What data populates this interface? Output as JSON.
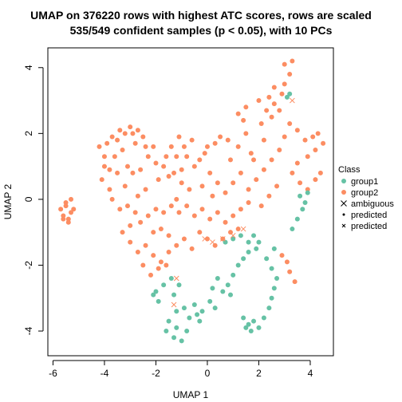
{
  "chart_data": {
    "type": "scatter",
    "title_line1": "UMAP on 376220 rows with highest ATC scores, rows are scaled",
    "title_line2": "535/549 confident samples (p < 0.05), with 10 PCs",
    "xlabel": "UMAP 1",
    "ylabel": "UMAP 2",
    "xlim": [
      -6.2,
      4.9
    ],
    "ylim": [
      -4.75,
      4.6
    ],
    "xticks": [
      -6,
      -4,
      -2,
      0,
      2,
      4
    ],
    "yticks": [
      -4,
      -2,
      0,
      2,
      4
    ],
    "legend": {
      "title": "Class",
      "placement": "right",
      "entries": [
        {
          "label": "group1",
          "color": "#66C2A5",
          "marker": "dot"
        },
        {
          "label": "group2",
          "color": "#FC8D62",
          "marker": "dot"
        },
        {
          "label": "ambiguous",
          "color": "#000000",
          "marker": "cross"
        },
        {
          "label": "predicted",
          "color": "#000000",
          "marker": "small-dot"
        },
        {
          "label": "predicted",
          "color": "#000000",
          "marker": "small-cross"
        }
      ]
    },
    "series": [
      {
        "name": "group2",
        "color": "#FC8D62",
        "points": [
          [
            -5.5,
            -0.2
          ],
          [
            -5.7,
            -0.3
          ],
          [
            -5.6,
            -0.5
          ],
          [
            -5.4,
            -0.6
          ],
          [
            -5.3,
            -0.4
          ],
          [
            -5.5,
            -0.1
          ],
          [
            -5.2,
            -0.3
          ],
          [
            -5.3,
            0.0
          ],
          [
            -5.4,
            -0.7
          ],
          [
            -5.6,
            -0.6
          ],
          [
            -4.2,
            1.6
          ],
          [
            -3.9,
            1.7
          ],
          [
            -3.5,
            1.8
          ],
          [
            -3.2,
            2.0
          ],
          [
            -3.0,
            2.2
          ],
          [
            -2.7,
            2.1
          ],
          [
            -2.5,
            1.9
          ],
          [
            -2.8,
            1.7
          ],
          [
            -3.3,
            1.5
          ],
          [
            -3.6,
            1.3
          ],
          [
            -4.0,
            1.0
          ],
          [
            -3.8,
            0.9
          ],
          [
            -3.5,
            0.8
          ],
          [
            -3.1,
            1.0
          ],
          [
            -2.9,
            0.8
          ],
          [
            -2.6,
            0.9
          ],
          [
            -2.3,
            1.3
          ],
          [
            -2.1,
            1.6
          ],
          [
            -2.0,
            1.1
          ],
          [
            -1.7,
            1.0
          ],
          [
            -1.9,
            0.6
          ],
          [
            -1.5,
            0.7
          ],
          [
            -1.3,
            0.8
          ],
          [
            -1.0,
            0.9
          ],
          [
            -1.2,
            1.3
          ],
          [
            -1.4,
            1.6
          ],
          [
            -0.9,
            1.6
          ],
          [
            -0.8,
            1.3
          ],
          [
            -0.5,
            1.0
          ],
          [
            -0.3,
            1.2
          ],
          [
            -0.1,
            1.4
          ],
          [
            0.3,
            1.7
          ],
          [
            0.5,
            1.9
          ],
          [
            0.8,
            1.8
          ],
          [
            1.2,
            1.6
          ],
          [
            1.5,
            2.0
          ],
          [
            1.4,
            2.4
          ],
          [
            1.2,
            2.6
          ],
          [
            1.5,
            2.8
          ],
          [
            2.0,
            3.0
          ],
          [
            2.4,
            3.1
          ],
          [
            2.6,
            2.9
          ],
          [
            3.0,
            3.5
          ],
          [
            3.2,
            3.8
          ],
          [
            3.0,
            4.1
          ],
          [
            3.3,
            4.2
          ],
          [
            2.9,
            3.2
          ],
          [
            2.5,
            2.5
          ],
          [
            2.3,
            2.7
          ],
          [
            2.1,
            2.3
          ],
          [
            -3.7,
            0.0
          ],
          [
            -3.4,
            -0.3
          ],
          [
            -3.1,
            -0.2
          ],
          [
            -2.8,
            -0.4
          ],
          [
            -3.0,
            -0.8
          ],
          [
            -2.6,
            -0.7
          ],
          [
            -2.3,
            -0.5
          ],
          [
            -2.0,
            -0.3
          ],
          [
            -1.7,
            -0.4
          ],
          [
            -1.4,
            -0.2
          ],
          [
            -1.1,
            -0.4
          ],
          [
            -0.8,
            -0.2
          ],
          [
            -0.5,
            -0.5
          ],
          [
            -0.2,
            -0.3
          ],
          [
            0.1,
            -0.6
          ],
          [
            0.4,
            -0.4
          ],
          [
            0.7,
            -0.7
          ],
          [
            1.0,
            -0.5
          ],
          [
            1.3,
            -0.3
          ],
          [
            1.6,
            -0.1
          ],
          [
            -3.3,
            -1.0
          ],
          [
            -3.0,
            -1.3
          ],
          [
            -2.7,
            -1.6
          ],
          [
            -2.4,
            -1.4
          ],
          [
            -2.1,
            -1.7
          ],
          [
            -1.8,
            -1.9
          ],
          [
            -1.5,
            -1.6
          ],
          [
            -1.2,
            -1.4
          ],
          [
            -0.9,
            -1.2
          ],
          [
            -0.6,
            -1.5
          ],
          [
            -0.3,
            -1.0
          ],
          [
            0.0,
            -1.2
          ],
          [
            0.3,
            -1.4
          ],
          [
            0.6,
            -1.2
          ],
          [
            0.9,
            -1.0
          ],
          [
            1.2,
            -0.9
          ],
          [
            -2.5,
            -2.0
          ],
          [
            -2.2,
            -2.3
          ],
          [
            -1.9,
            -2.1
          ],
          [
            -1.6,
            -2.0
          ],
          [
            1.6,
            0.3
          ],
          [
            1.9,
            0.6
          ],
          [
            2.2,
            0.9
          ],
          [
            1.8,
            1.2
          ],
          [
            1.3,
            0.8
          ],
          [
            1.0,
            0.5
          ],
          [
            0.7,
            0.2
          ],
          [
            0.4,
            0.5
          ],
          [
            0.1,
            0.8
          ],
          [
            -0.2,
            0.4
          ],
          [
            3.8,
            1.8
          ],
          [
            4.1,
            1.9
          ],
          [
            4.3,
            2.0
          ],
          [
            4.5,
            1.7
          ],
          [
            4.2,
            1.5
          ],
          [
            3.9,
            1.3
          ],
          [
            3.5,
            1.1
          ],
          [
            3.3,
            0.8
          ],
          [
            3.6,
            0.5
          ],
          [
            3.9,
            0.3
          ],
          [
            4.2,
            0.6
          ],
          [
            4.4,
            0.8
          ],
          [
            3.5,
            2.1
          ],
          [
            3.2,
            2.3
          ],
          [
            3.0,
            1.9
          ],
          [
            2.8,
            1.5
          ],
          [
            2.5,
            1.2
          ],
          [
            2.7,
            0.4
          ],
          [
            2.4,
            0.1
          ],
          [
            2.1,
            -0.2
          ],
          [
            -1.8,
            -0.9
          ],
          [
            -1.5,
            -1.1
          ],
          [
            -2.1,
            -1.0
          ],
          [
            -0.7,
            0.3
          ],
          [
            -1.0,
            0.5
          ],
          [
            -2.4,
            0.3
          ],
          [
            -2.7,
            0.1
          ],
          [
            -3.2,
            0.4
          ],
          [
            -1.2,
            0.0
          ],
          [
            0.2,
            0.1
          ],
          [
            3.2,
            -2.2
          ],
          [
            3.4,
            -2.5
          ],
          [
            3.1,
            -1.9
          ],
          [
            2.9,
            -1.7
          ],
          [
            2.6,
            3.4
          ],
          [
            2.8,
            2.7
          ],
          [
            2.2,
            1.8
          ],
          [
            1.7,
            1.4
          ],
          [
            0.9,
            1.2
          ],
          [
            0.0,
            1.6
          ],
          [
            -4.1,
            0.6
          ],
          [
            -3.8,
            0.3
          ],
          [
            -4.0,
            1.3
          ],
          [
            -3.7,
            1.9
          ],
          [
            -3.4,
            2.1
          ],
          [
            -2.9,
            2.0
          ],
          [
            -2.4,
            1.6
          ],
          [
            -1.6,
            1.3
          ],
          [
            -1.1,
            1.9
          ],
          [
            -0.6,
            1.8
          ]
        ]
      },
      {
        "name": "group1",
        "color": "#66C2A5",
        "points": [
          [
            -1.3,
            -4.2
          ],
          [
            -1.0,
            -4.3
          ],
          [
            -0.8,
            -4.0
          ],
          [
            -1.2,
            -3.9
          ],
          [
            -1.5,
            -3.7
          ],
          [
            -1.6,
            -4.0
          ],
          [
            -0.7,
            -3.6
          ],
          [
            -0.4,
            -3.5
          ],
          [
            -0.9,
            -3.3
          ],
          [
            -1.2,
            -3.4
          ],
          [
            -0.5,
            -3.2
          ],
          [
            -0.2,
            -3.4
          ],
          [
            0.1,
            -3.1
          ],
          [
            0.3,
            -3.3
          ],
          [
            -1.9,
            -3.1
          ],
          [
            -2.1,
            -2.9
          ],
          [
            -1.7,
            -2.6
          ],
          [
            -1.4,
            -2.4
          ],
          [
            -1.1,
            -2.6
          ],
          [
            -1.3,
            -2.9
          ],
          [
            1.4,
            -3.6
          ],
          [
            1.6,
            -3.8
          ],
          [
            1.8,
            -3.7
          ],
          [
            2.0,
            -3.9
          ],
          [
            1.7,
            -4.0
          ],
          [
            1.5,
            -3.9
          ],
          [
            2.2,
            -3.6
          ],
          [
            2.4,
            -3.3
          ],
          [
            2.5,
            -3.0
          ],
          [
            2.6,
            -2.7
          ],
          [
            2.7,
            -2.4
          ],
          [
            2.5,
            -2.1
          ],
          [
            2.3,
            -1.8
          ],
          [
            2.6,
            -1.5
          ],
          [
            0.6,
            -2.8
          ],
          [
            0.8,
            -2.6
          ],
          [
            1.0,
            -2.3
          ],
          [
            1.2,
            -2.0
          ],
          [
            1.4,
            -1.8
          ],
          [
            1.6,
            -1.6
          ],
          [
            1.9,
            -1.5
          ],
          [
            1.6,
            -1.3
          ],
          [
            1.3,
            -1.1
          ],
          [
            1.0,
            -1.2
          ],
          [
            0.7,
            -1.3
          ],
          [
            1.8,
            -1.1
          ],
          [
            2.0,
            -1.3
          ],
          [
            0.4,
            -2.4
          ],
          [
            0.2,
            -2.7
          ],
          [
            0.9,
            -2.9
          ],
          [
            3.6,
            0.1
          ],
          [
            3.8,
            -0.1
          ],
          [
            3.9,
            0.2
          ],
          [
            3.7,
            -0.3
          ],
          [
            3.5,
            -0.6
          ],
          [
            3.3,
            -0.9
          ],
          [
            3.1,
            3.1
          ],
          [
            3.2,
            3.2
          ],
          [
            -2.0,
            -2.8
          ],
          [
            -0.3,
            -3.7
          ]
        ]
      },
      {
        "name": "ambiguous",
        "color": "#FC8D62",
        "marker": "cross",
        "points": [
          [
            1.4,
            -0.9
          ],
          [
            1.0,
            -1.1
          ],
          [
            0.6,
            -1.2
          ],
          [
            0.2,
            -1.3
          ],
          [
            -0.1,
            -1.2
          ],
          [
            -1.2,
            -2.4
          ],
          [
            -1.3,
            -3.2
          ],
          [
            3.3,
            3.0
          ]
        ]
      }
    ]
  }
}
